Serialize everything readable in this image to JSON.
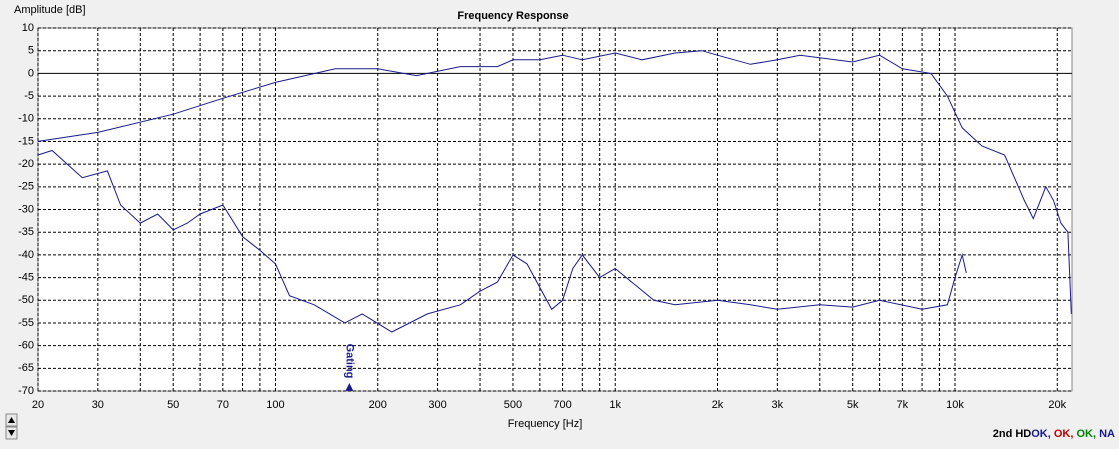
{
  "chart_data": {
    "type": "line",
    "title": "Frequency Response",
    "y_label": "Amplitude [dB]",
    "x_label": "Frequency [Hz]",
    "xscale": "log",
    "xlim": [
      20,
      22100
    ],
    "ylim": [
      -70,
      10
    ],
    "xticks": [
      20,
      30,
      50,
      70,
      100,
      200,
      300,
      500,
      700,
      {
        "value": 1000,
        "label": "1k"
      },
      {
        "value": 2000,
        "label": "2k"
      },
      {
        "value": 3000,
        "label": "3k"
      },
      {
        "value": 5000,
        "label": "5k"
      },
      {
        "value": 7000,
        "label": "7k"
      },
      {
        "value": 10000,
        "label": "10k"
      },
      {
        "value": 20000,
        "label": "20k"
      }
    ],
    "xgrid": [
      40,
      60,
      80,
      90,
      400,
      600,
      800,
      900,
      4000,
      6000,
      8000,
      9000
    ],
    "yticks": [
      10,
      5,
      0,
      -5,
      -10,
      -15,
      -20,
      -25,
      -30,
      -35,
      -40,
      -45,
      -50,
      -55,
      -60,
      -65,
      -70
    ],
    "grid": true,
    "series": [
      {
        "color": "#1a1a8c",
        "x": [
          20,
          30,
          50,
          70,
          100,
          150,
          200,
          260,
          350,
          450,
          500,
          600,
          700,
          800,
          1000,
          1200,
          1500,
          1800,
          2000,
          2500,
          3000,
          3500,
          5000,
          6000,
          7000,
          8500,
          9500,
          10500,
          12000,
          14000,
          16000,
          17000,
          18500,
          19500,
          20500,
          21500,
          22000
        ],
        "values": [
          -15,
          -13,
          -9,
          -5.5,
          -2,
          1,
          1,
          -0.5,
          1.5,
          1.5,
          3,
          3,
          4,
          3,
          4.5,
          3,
          4.5,
          5,
          4,
          2,
          3,
          4,
          2.5,
          4,
          1,
          0,
          -5,
          -12,
          -16,
          -18,
          -28,
          -32,
          -25,
          -28,
          -33,
          -35,
          -53
        ]
      },
      {
        "color": "#1a1a8c",
        "x": [
          20,
          22,
          27,
          32,
          35,
          40,
          45,
          50,
          55,
          60,
          70,
          80,
          90,
          100,
          110,
          130,
          160,
          180,
          220,
          280,
          350,
          400,
          450,
          500,
          550,
          650,
          700,
          750,
          800,
          900,
          1000,
          1300,
          1500,
          2000,
          2500,
          3000,
          4000,
          5000,
          6000,
          8000,
          9500,
          10000,
          10500,
          10800
        ],
        "values": [
          -18,
          -17,
          -23,
          -21.5,
          -29,
          -33,
          -31,
          -34.5,
          -33,
          -31,
          -29,
          -36,
          -39,
          -42,
          -49,
          -51,
          -55,
          -53,
          -57,
          -53,
          -51,
          -48,
          -46,
          -40,
          -42,
          -52,
          -50,
          -43,
          -40,
          -45,
          -43,
          -50,
          -51,
          -50,
          -51,
          -52,
          -51,
          -51.5,
          -50,
          -52,
          -51,
          -45,
          -40,
          -44
        ]
      }
    ],
    "annotations": [
      {
        "text": "Gating",
        "x": 165
      }
    ],
    "status": [
      {
        "text": "2nd HD",
        "color": "#000000"
      },
      {
        "text": "OK,",
        "color": "#1a1a8c"
      },
      {
        "text": " OK,",
        "color": "#c00000"
      },
      {
        "text": " OK,",
        "color": "#008000"
      },
      {
        "text": " NA",
        "color": "#1a1a8c"
      }
    ]
  }
}
